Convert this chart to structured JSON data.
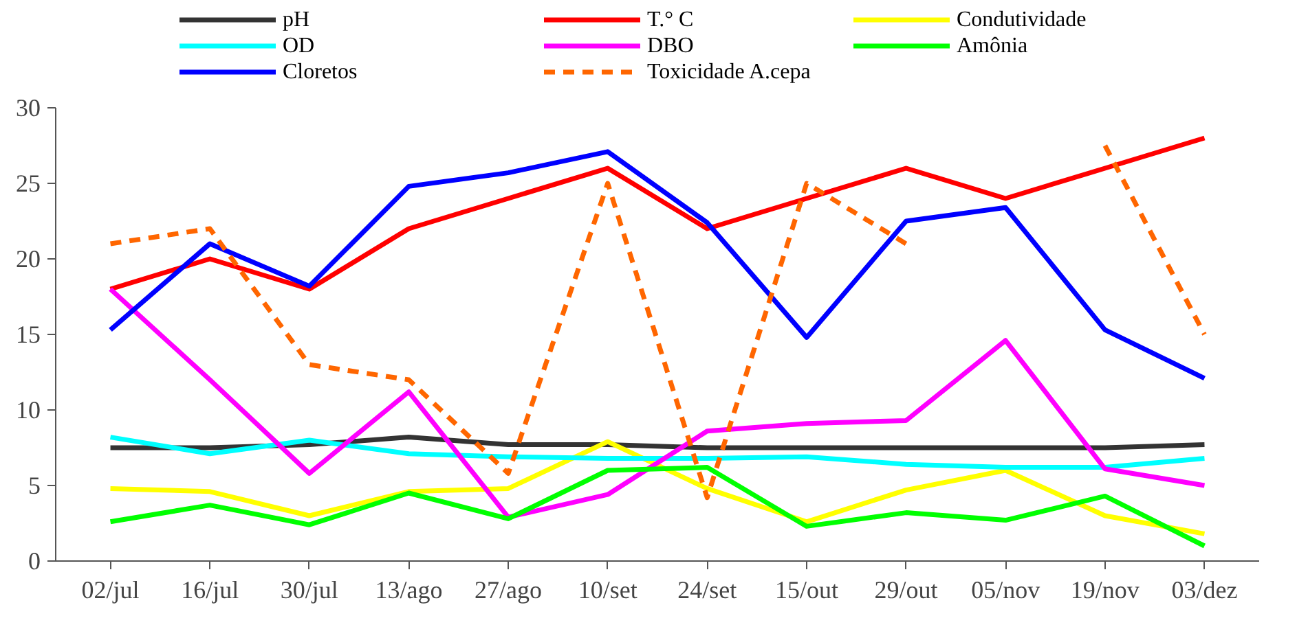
{
  "chart_data": {
    "type": "line",
    "categories": [
      "02/jul",
      "16/jul",
      "30/jul",
      "13/ago",
      "27/ago",
      "10/set",
      "24/set",
      "15/out",
      "29/out",
      "05/nov",
      "19/nov",
      "03/dez"
    ],
    "ylim": [
      0,
      30
    ],
    "yticks": [
      0,
      5,
      10,
      15,
      20,
      25,
      30
    ],
    "grid": false,
    "legend": "top",
    "marker": "none",
    "series": [
      {
        "name": "pH",
        "color": "#333333",
        "values": [
          7.5,
          7.5,
          7.7,
          8.2,
          7.7,
          7.7,
          7.5,
          7.5,
          7.5,
          7.5,
          7.5,
          7.7
        ]
      },
      {
        "name": "T.° C",
        "color": "#ff0000",
        "values": [
          18,
          20,
          18,
          22,
          24,
          26,
          22,
          24,
          26,
          24,
          26,
          28
        ]
      },
      {
        "name": "Condutividade",
        "color": "#ffff00",
        "values": [
          4.8,
          4.6,
          3,
          4.6,
          4.8,
          7.9,
          4.8,
          2.6,
          4.7,
          6,
          3,
          1.8
        ]
      },
      {
        "name": "OD",
        "color": "#00ffff",
        "values": [
          8.2,
          7.1,
          8,
          7.1,
          6.9,
          6.8,
          6.8,
          6.9,
          6.4,
          6.2,
          6.2,
          6.8
        ]
      },
      {
        "name": "DBO",
        "color": "#ff00ff",
        "values": [
          18,
          12,
          5.8,
          11.2,
          2.9,
          4.4,
          8.6,
          9.1,
          9.3,
          14.6,
          6.1,
          5
        ]
      },
      {
        "name": "Amônia",
        "color": "#00ff00",
        "values": [
          2.6,
          3.7,
          2.4,
          4.5,
          2.8,
          6,
          6.2,
          2.3,
          3.2,
          2.7,
          4.3,
          1
        ]
      },
      {
        "name": "Cloretos",
        "color": "#0000ff",
        "values": [
          15.3,
          21,
          18.2,
          24.8,
          25.7,
          27.1,
          22.4,
          14.8,
          22.5,
          23.4,
          15.3,
          12.1
        ]
      },
      {
        "name": "Toxicidade A.cepa",
        "color": "#ff6600",
        "line_style": "dashed",
        "values": [
          21,
          22,
          13,
          12,
          5.8,
          25,
          4.2,
          25,
          21,
          null,
          27.5,
          15
        ]
      }
    ]
  }
}
